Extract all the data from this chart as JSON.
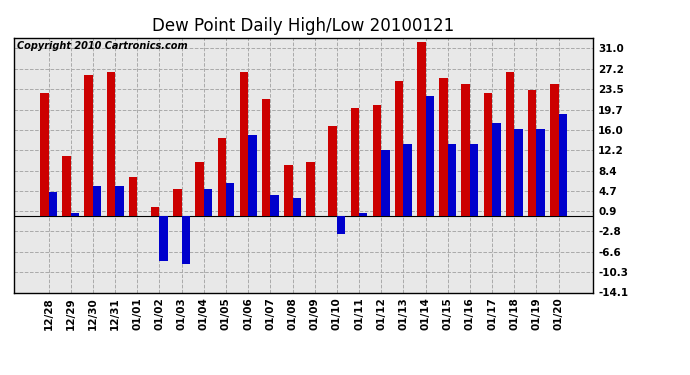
{
  "title": "Dew Point Daily High/Low 20100121",
  "copyright": "Copyright 2010 Cartronics.com",
  "categories": [
    "12/28",
    "12/29",
    "12/30",
    "12/31",
    "01/01",
    "01/02",
    "01/03",
    "01/04",
    "01/05",
    "01/06",
    "01/07",
    "01/08",
    "01/09",
    "01/10",
    "01/11",
    "01/12",
    "01/13",
    "01/14",
    "01/15",
    "01/16",
    "01/17",
    "01/18",
    "01/19",
    "01/20"
  ],
  "high_values": [
    22.8,
    11.1,
    26.1,
    26.7,
    7.2,
    1.7,
    5.0,
    10.0,
    14.4,
    26.7,
    21.7,
    9.4,
    10.0,
    16.7,
    20.0,
    20.6,
    25.0,
    32.2,
    25.6,
    24.4,
    22.8,
    26.7,
    23.3,
    24.4
  ],
  "low_values": [
    4.4,
    0.6,
    5.6,
    5.6,
    0.0,
    -8.3,
    -8.9,
    5.0,
    6.1,
    15.0,
    3.9,
    3.3,
    0.0,
    -3.3,
    0.6,
    12.2,
    13.3,
    22.2,
    13.3,
    13.3,
    17.2,
    16.1,
    16.1,
    18.9
  ],
  "high_color": "#cc0000",
  "low_color": "#0000cc",
  "yticks": [
    31.0,
    27.2,
    23.5,
    19.7,
    16.0,
    12.2,
    8.4,
    4.7,
    0.9,
    -2.8,
    -6.6,
    -10.3,
    -14.1
  ],
  "ylim": [
    -14.1,
    33.0
  ],
  "bg_color": "#ffffff",
  "plot_bg_color": "#e8e8e8",
  "grid_color": "#aaaaaa",
  "title_fontsize": 12,
  "label_fontsize": 7.5,
  "copyright_fontsize": 7
}
